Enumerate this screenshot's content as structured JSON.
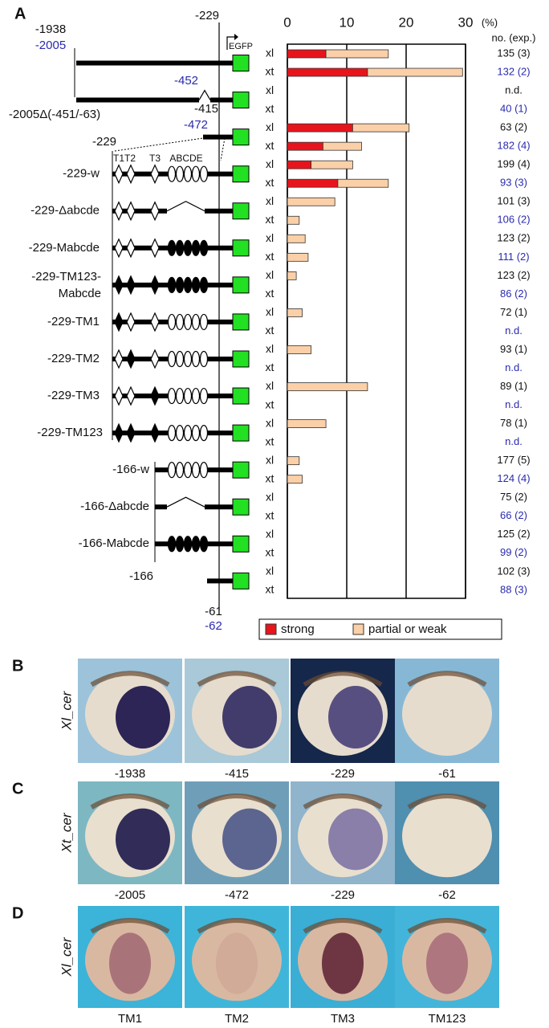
{
  "panel_a_label": "A",
  "diagram_labels": [
    "-1938",
    "-2005",
    "-229",
    "EGFP",
    "-452",
    "-2005Δ(-451/-63)",
    "-415",
    "-472",
    "-229",
    "T1T2",
    "T3",
    "ABCDE",
    "-229-w",
    "-229-Δabcde",
    "-229-Mabcde",
    "-229-TM123-",
    "Mabcde",
    "-229-TM1",
    "-229-TM2",
    "-229-TM3",
    "-229-TM123",
    "-166-w",
    "-166-Δabcde",
    "-166-Mabcde",
    "-166",
    "-61",
    "-62"
  ],
  "chart_data": {
    "type": "bar",
    "orientation": "horizontal",
    "stacked": true,
    "categories": [
      "xl",
      "xt",
      "xl",
      "xt",
      "xl",
      "xt",
      "xl",
      "xt",
      "xl",
      "xt",
      "xl",
      "xt",
      "xl",
      "xt",
      "xl",
      "xt",
      "xl",
      "xt",
      "xl",
      "xt",
      "xl",
      "xt",
      "xl",
      "xt",
      "xl",
      "xt",
      "xl",
      "xt",
      "xl",
      "xt"
    ],
    "series": [
      {
        "name": "strong",
        "color": "#e8141c",
        "values": [
          6.5,
          13.5,
          null,
          0,
          11,
          6,
          4,
          8.5,
          0,
          0,
          0,
          0,
          0,
          0,
          0,
          null,
          0,
          null,
          0,
          null,
          0,
          null,
          0,
          0,
          0,
          0,
          0,
          0,
          0,
          0
        ]
      },
      {
        "name": "partial or weak",
        "color": "#fbd0a8",
        "values": [
          10.5,
          16,
          null,
          0,
          9.5,
          6.5,
          7,
          8.5,
          8,
          2,
          3,
          3.5,
          1.5,
          0,
          2.5,
          null,
          4,
          null,
          13.5,
          null,
          6.5,
          null,
          2,
          2.5,
          0,
          0,
          0,
          0,
          0,
          0
        ]
      }
    ],
    "xlim": [
      0,
      30
    ],
    "xticks": [
      0,
      10,
      20,
      30
    ],
    "grid": true,
    "unit_label": "(%)",
    "counts_header": "no. (exp.)",
    "counts": [
      "135 (3)",
      "132 (2)",
      "n.d.",
      "40 (1)",
      "63 (2)",
      "182 (4)",
      "199 (4)",
      "93 (3)",
      "101 (3)",
      "106 (2)",
      "123 (2)",
      "111 (2)",
      "123 (2)",
      "86 (2)",
      "72 (1)",
      "n.d.",
      "93 (1)",
      "n.d.",
      "89 (1)",
      "n.d.",
      "78 (1)",
      "n.d.",
      "177 (5)",
      "124 (4)",
      "75 (2)",
      "66 (2)",
      "125 (2)",
      "99 (2)",
      "102 (3)",
      "88 (3)"
    ],
    "legend": "bottom"
  },
  "panels": [
    {
      "label": "B",
      "gene": "Xl_cer",
      "captions": [
        "-1938",
        "-415",
        "-229",
        "-61"
      ]
    },
    {
      "label": "C",
      "gene": "Xt_cer",
      "captions": [
        "-2005",
        "-472",
        "-229",
        "-62"
      ]
    },
    {
      "label": "D",
      "gene": "Xl_cer",
      "captions": [
        "TM1",
        "TM2",
        "TM3",
        "TM123"
      ]
    }
  ]
}
